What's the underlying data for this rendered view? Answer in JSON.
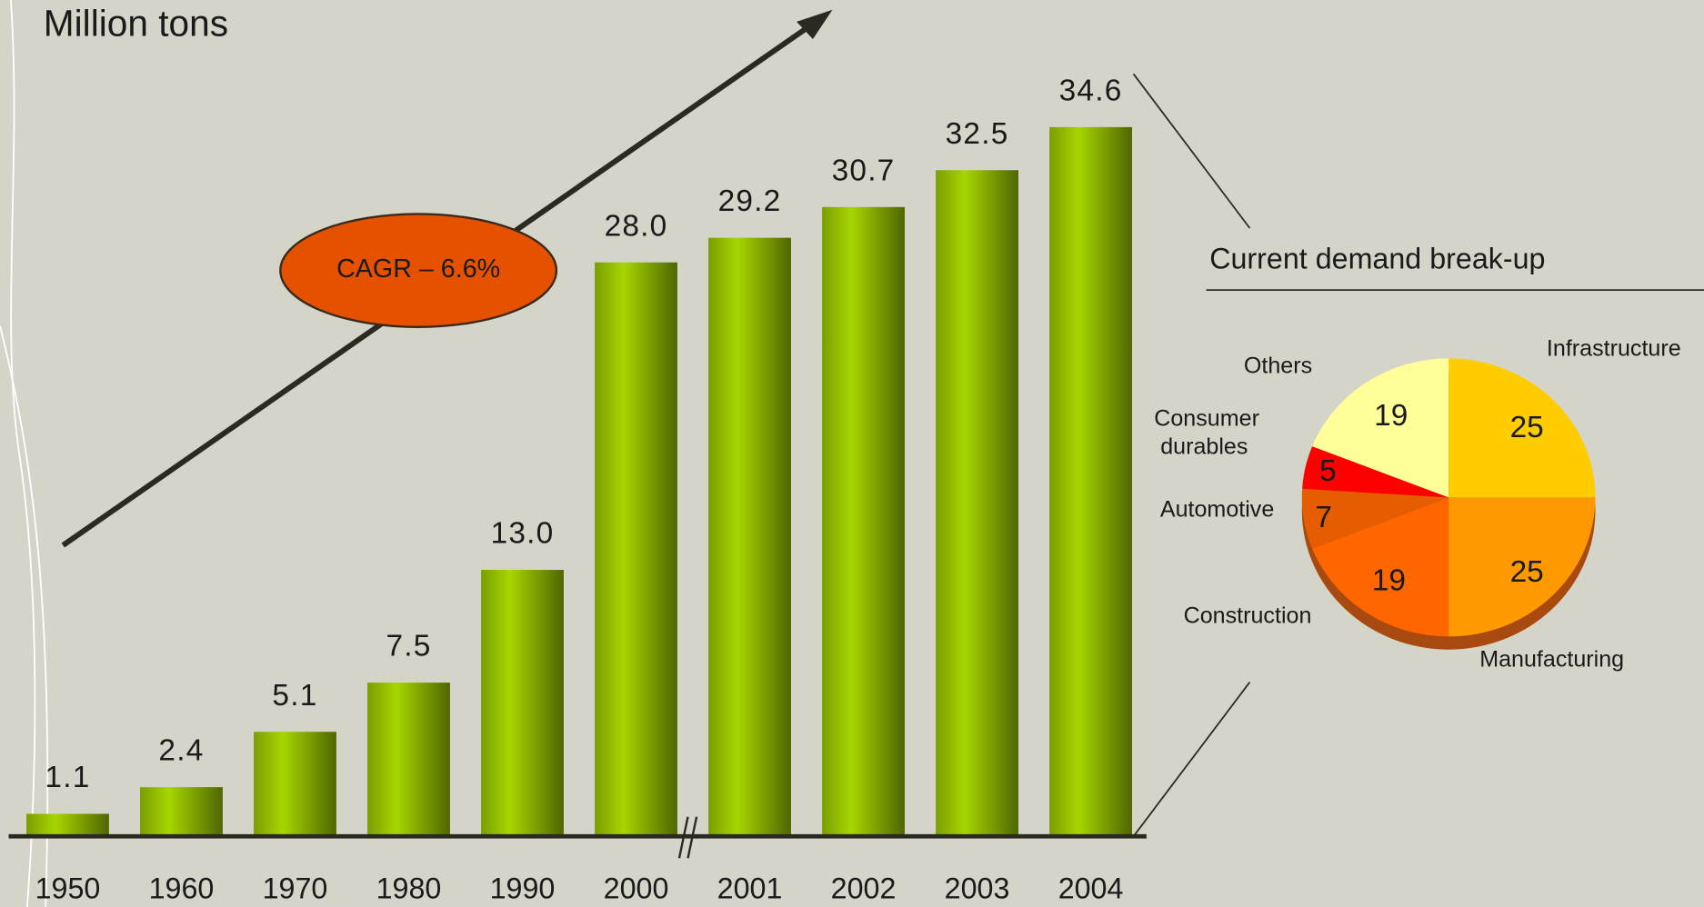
{
  "chart_data": [
    {
      "type": "bar",
      "axis_label": "Million tons",
      "annotation": "CAGR – 6.6%",
      "categories": [
        "1950",
        "1960",
        "1970",
        "1980",
        "1990",
        "2000",
        "2001",
        "2002",
        "2003",
        "2004"
      ],
      "values": [
        1.1,
        2.4,
        5.1,
        7.5,
        13.0,
        28.0,
        29.2,
        30.7,
        32.5,
        34.6
      ],
      "value_labels": [
        "1.1",
        "2.4",
        "5.1",
        "7.5",
        "13.0",
        "28.0",
        "29.2",
        "30.7",
        "32.5",
        "34.6"
      ],
      "color": "#99cc00"
    },
    {
      "type": "pie",
      "title": "Current demand break-up",
      "categories": [
        "Infrastructure",
        "Manufacturing",
        "Construction",
        "Automotive",
        "Consumer durables",
        "Others"
      ],
      "values": [
        25,
        25,
        19,
        7,
        5,
        19
      ],
      "colors": [
        "#ffcc00",
        "#ff9900",
        "#ff6600",
        "#e65c00",
        "#ff0000",
        "#ffff99"
      ]
    }
  ]
}
